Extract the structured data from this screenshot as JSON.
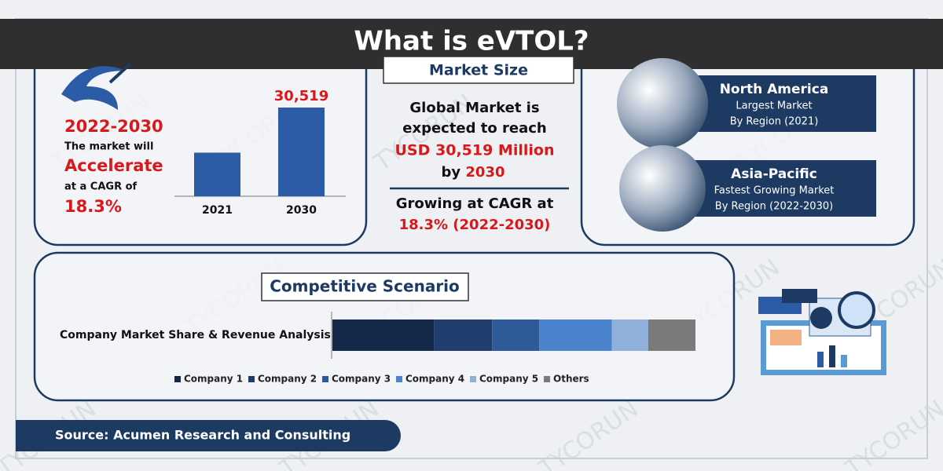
{
  "title": "What is eVTOL?",
  "watermark": "TYCORUN",
  "growth": {
    "period": "2022-2030",
    "line1": "The market will",
    "highlight": "Accelerate",
    "line2": "at a CAGR of",
    "cagr": "18.3%"
  },
  "market_chart": {
    "type": "bar",
    "categories": [
      "2021",
      "2030"
    ],
    "values": [
      15000,
      30519
    ],
    "value_labels": [
      null,
      "30,519"
    ],
    "color": "#2d5ca6"
  },
  "market_size": {
    "heading": "Market Size",
    "line1": "Global Market is",
    "line2": "expected to reach",
    "amount": "USD 30,519 Million",
    "by": "by",
    "year": "2030",
    "cagr_line1": "Growing at CAGR at",
    "cagr_line2": "18.3% (2022-2030)"
  },
  "regions": [
    {
      "name": "North America",
      "line1": "Largest Market",
      "line2": "By Region (2021)"
    },
    {
      "name": "Asia-Pacific",
      "line1": "Fastest Growing Market",
      "line2": "By Region (2022-2030)"
    }
  ],
  "competition": {
    "heading": "Competitive Scenario",
    "label": "Company Market Share & Revenue Analysis",
    "chart": {
      "type": "stacked-bar",
      "series": [
        {
          "name": "Company 1",
          "color": "#14284a",
          "values": [
            28
          ]
        },
        {
          "name": "Company 2",
          "color": "#1f3e6e",
          "values": [
            16
          ]
        },
        {
          "name": "Company 3",
          "color": "#2e5a9a",
          "values": [
            13
          ]
        },
        {
          "name": "Company 4",
          "color": "#4a84cc",
          "values": [
            20
          ]
        },
        {
          "name": "Company 5",
          "color": "#8fb0d8",
          "values": [
            10
          ]
        },
        {
          "name": "Others",
          "color": "#7a7a7a",
          "values": [
            13
          ]
        }
      ]
    }
  },
  "source": "Source: Acumen Research and Consulting"
}
